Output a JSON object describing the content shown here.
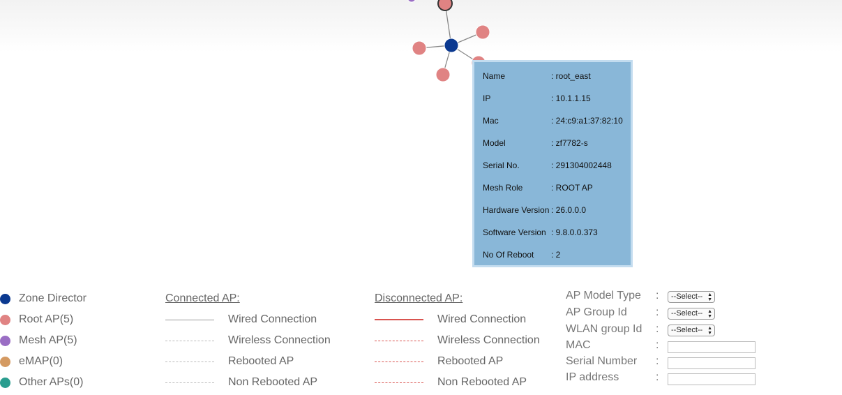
{
  "tooltip": {
    "rows": [
      {
        "label": "Name",
        "value": ": root_east"
      },
      {
        "label": "IP",
        "value": ": 10.1.1.15"
      },
      {
        "label": "Mac",
        "value": ": 24:c9:a1:37:82:10"
      },
      {
        "label": "Model",
        "value": ": zf7782-s"
      },
      {
        "label": "Serial No.",
        "value": ": 291304002448"
      },
      {
        "label": "Mesh Role",
        "value": ": ROOT AP"
      },
      {
        "label": "Hardware Version",
        "value": ": 26.0.0.0"
      },
      {
        "label": "Software Version",
        "value": ": 9.8.0.0.373"
      },
      {
        "label": "No Of Reboot",
        "value": ": 2"
      }
    ]
  },
  "legend": {
    "nodes": [
      {
        "label": "Zone Director",
        "color": "#0b3990"
      },
      {
        "label": "Root AP(5)",
        "color": "#e08383"
      },
      {
        "label": "Mesh AP(5)",
        "color": "#9a6ec4"
      },
      {
        "label": "eMAP(0)",
        "color": "#d49a62"
      },
      {
        "label": "Other APs(0)",
        "color": "#2a9d8f"
      }
    ],
    "connected": {
      "heading": "Connected AP:",
      "color": "#999999",
      "items": [
        "Wired Connection",
        "Wireless Connection",
        "Rebooted AP",
        "Non Rebooted AP"
      ]
    },
    "disconnected": {
      "heading": "Disconnected AP:",
      "color": "#d9534f",
      "items": [
        "Wired Connection",
        "Wireless Connection",
        "Rebooted AP",
        "Non Rebooted AP"
      ]
    }
  },
  "filters": {
    "colon": ":",
    "ap_model_type": {
      "label": "AP Model Type",
      "value": "--Select--"
    },
    "ap_group_id": {
      "label": "AP Group Id",
      "value": "--Select--"
    },
    "wlan_group_id": {
      "label": "WLAN group Id",
      "value": "--Select--"
    },
    "mac": {
      "label": "MAC",
      "value": ""
    },
    "serial_number": {
      "label": "Serial Number",
      "value": ""
    },
    "ip_address": {
      "label": "IP address",
      "value": ""
    }
  },
  "topology_colors": {
    "zone_director": "#0b3990",
    "root_ap": "#e08383",
    "mesh_ap": "#9a6ec4",
    "edge": "#888888"
  }
}
